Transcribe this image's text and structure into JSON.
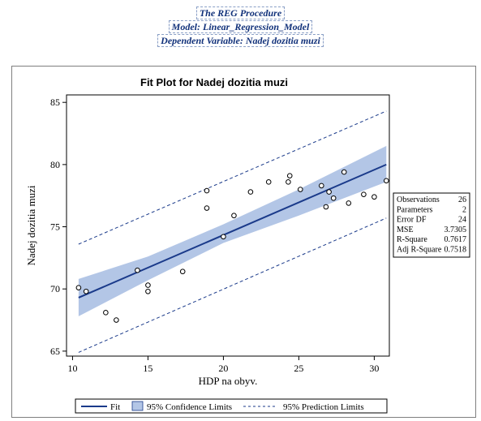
{
  "header": {
    "procedure": "The REG Procedure",
    "model": "Model: Linear_Regression_Model",
    "dependent": "Dependent Variable: Nadej dozitia muzi"
  },
  "chart_data": {
    "type": "scatter",
    "title": "Fit Plot for Nadej dozitia muzi",
    "xlabel": "HDP na obyv.",
    "ylabel": "Nadej dozitia muzi",
    "xlim": [
      9.6,
      31.0
    ],
    "ylim": [
      64.6,
      85.6
    ],
    "xticks": [
      10,
      15,
      20,
      25,
      30
    ],
    "yticks": [
      65,
      70,
      75,
      80,
      85
    ],
    "grid": false,
    "points": [
      {
        "x": 10.4,
        "y": 70.1
      },
      {
        "x": 10.9,
        "y": 69.8
      },
      {
        "x": 12.2,
        "y": 68.1
      },
      {
        "x": 12.9,
        "y": 67.5
      },
      {
        "x": 14.3,
        "y": 71.5
      },
      {
        "x": 15.0,
        "y": 70.3
      },
      {
        "x": 15.0,
        "y": 69.8
      },
      {
        "x": 17.3,
        "y": 71.4
      },
      {
        "x": 18.9,
        "y": 77.9
      },
      {
        "x": 18.9,
        "y": 76.5
      },
      {
        "x": 20.0,
        "y": 74.2
      },
      {
        "x": 20.7,
        "y": 75.9
      },
      {
        "x": 21.8,
        "y": 77.8
      },
      {
        "x": 23.0,
        "y": 78.6
      },
      {
        "x": 24.3,
        "y": 78.6
      },
      {
        "x": 24.4,
        "y": 79.1
      },
      {
        "x": 25.1,
        "y": 78.0
      },
      {
        "x": 26.5,
        "y": 78.3
      },
      {
        "x": 26.8,
        "y": 76.6
      },
      {
        "x": 27.0,
        "y": 77.8
      },
      {
        "x": 27.3,
        "y": 77.3
      },
      {
        "x": 28.0,
        "y": 79.4
      },
      {
        "x": 28.3,
        "y": 76.9
      },
      {
        "x": 29.3,
        "y": 77.6
      },
      {
        "x": 30.0,
        "y": 77.4
      },
      {
        "x": 30.8,
        "y": 78.7
      }
    ],
    "fit": {
      "x": [
        10.4,
        30.8
      ],
      "y": [
        69.3,
        80.0
      ]
    },
    "confidence": {
      "x": [
        10.4,
        15,
        20,
        25,
        30.8
      ],
      "lower": [
        67.8,
        70.7,
        73.7,
        75.9,
        78.6
      ],
      "upper": [
        70.8,
        72.6,
        75.2,
        78.0,
        81.5
      ]
    },
    "prediction": {
      "x": [
        10.4,
        30.8
      ],
      "lower": [
        64.9,
        75.7
      ],
      "upper": [
        73.6,
        84.3
      ]
    },
    "colors": {
      "fit": "#1a3a8a",
      "band": "#b3c6e6",
      "prediction": "#1a3a8a",
      "points": "#000000"
    },
    "legend": {
      "position": "bottom",
      "entries": [
        "Fit",
        "95% Confidence Limits",
        "95% Prediction Limits"
      ]
    },
    "stats": [
      {
        "label": "Observations",
        "value": "26"
      },
      {
        "label": "Parameters",
        "value": "2"
      },
      {
        "label": "Error DF",
        "value": "24"
      },
      {
        "label": "MSE",
        "value": "3.7305"
      },
      {
        "label": "R-Square",
        "value": "0.7617"
      },
      {
        "label": "Adj R-Square",
        "value": "0.7518"
      }
    ]
  }
}
